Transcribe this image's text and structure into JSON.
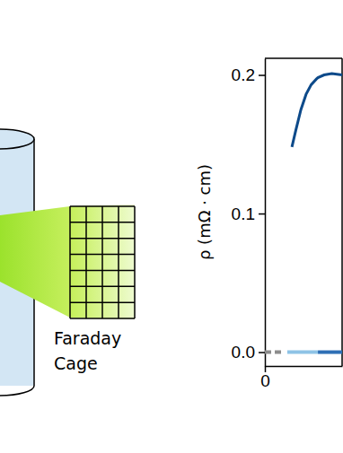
{
  "chart_data": {
    "type": "line",
    "y_label": "ρ (mΩ · cm)",
    "x": [
      0,
      3,
      7,
      8.7,
      10.5,
      12,
      14,
      16,
      18,
      20,
      20.6,
      23,
      26,
      30
    ],
    "series": [
      {
        "color": "#0d4a8a",
        "line_style": "solid",
        "values": [
          null,
          null,
          null,
          null,
          0.148,
          0.16,
          0.175,
          0.186,
          0.193,
          0.197,
          0.198,
          0.2,
          0.201,
          0.2
        ]
      },
      {
        "color": "#8c8c8c",
        "line_style": "dashed",
        "values": [
          0,
          0,
          0,
          null,
          null,
          null,
          null,
          null,
          null,
          null,
          null,
          null,
          null,
          null
        ]
      },
      {
        "color": "#8ec3e6",
        "line_style": "solid",
        "values": [
          null,
          null,
          null,
          0,
          0,
          0,
          0,
          0,
          0,
          0,
          0,
          null,
          null,
          null
        ]
      },
      {
        "color": "#2e6fb5",
        "line_style": "solid",
        "values": [
          null,
          null,
          null,
          null,
          null,
          null,
          null,
          null,
          null,
          null,
          0,
          0,
          0,
          0
        ]
      }
    ],
    "xlim": [
      0,
      30
    ],
    "xticks": [
      0
    ],
    "ylim": [
      -0.01,
      0.212
    ],
    "yticks": [
      {
        "value": 0,
        "label": "0.0"
      },
      0.1,
      0.2
    ],
    "grid": false
  },
  "diagram": {
    "label_lines": [
      "Faraday",
      "Cage"
    ]
  }
}
